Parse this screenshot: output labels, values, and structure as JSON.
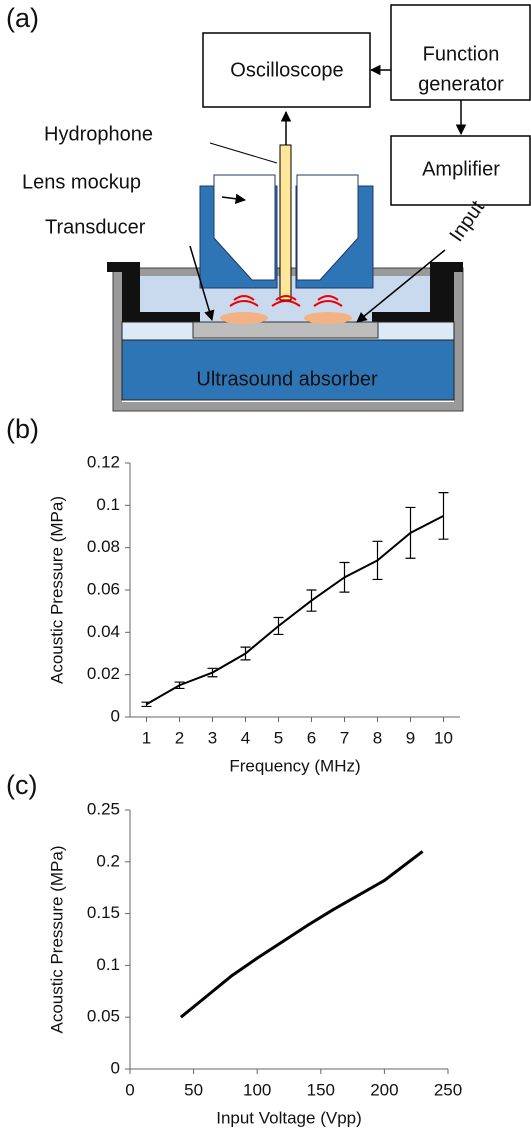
{
  "diagram": {
    "panel_label": "(a)",
    "oscilloscope": "Oscilloscope",
    "function_generator": [
      "Function",
      "generator"
    ],
    "amplifier": "Amplifier",
    "hydrophone": "Hydrophone",
    "lens": "Lens mockup",
    "transducer": "Transducer",
    "input": "Input",
    "absorber": "Ultrasound absorber"
  },
  "chart_data": [
    {
      "type": "line",
      "panel_label": "(b)",
      "x_label": "Frequency (MHz)",
      "y_label": "Acoustic Pressure (MPa)",
      "color": "#000000",
      "x": [
        1,
        2,
        3,
        4,
        5,
        6,
        7,
        8,
        9,
        10
      ],
      "values": [
        0.006,
        0.015,
        0.021,
        0.03,
        0.043,
        0.055,
        0.066,
        0.074,
        0.087,
        0.095
      ],
      "errors": [
        0.001,
        0.0015,
        0.002,
        0.003,
        0.004,
        0.005,
        0.007,
        0.009,
        0.012,
        0.011
      ],
      "xlim": [
        0.5,
        10.5
      ],
      "xticks": [
        1,
        2,
        3,
        4,
        5,
        6,
        7,
        8,
        9,
        10
      ],
      "ylim": [
        0,
        0.12
      ],
      "yticks": [
        0,
        0.02,
        0.04,
        0.06,
        0.08,
        0.1,
        0.12
      ]
    },
    {
      "type": "line",
      "panel_label": "(c)",
      "x_label": "Input Voltage (Vpp)",
      "y_label": "Acoustic Pressure (MPa)",
      "color": "#000000",
      "x": [
        40,
        60,
        80,
        100,
        120,
        140,
        160,
        180,
        200,
        230
      ],
      "values": [
        0.05,
        0.07,
        0.09,
        0.107,
        0.123,
        0.139,
        0.154,
        0.168,
        0.182,
        0.21
      ],
      "xlim": [
        0,
        250
      ],
      "xticks": [
        0,
        50,
        100,
        150,
        200,
        250
      ],
      "ylim": [
        0,
        0.25
      ],
      "yticks": [
        0,
        0.05,
        0.1,
        0.15,
        0.2,
        0.25
      ]
    }
  ]
}
